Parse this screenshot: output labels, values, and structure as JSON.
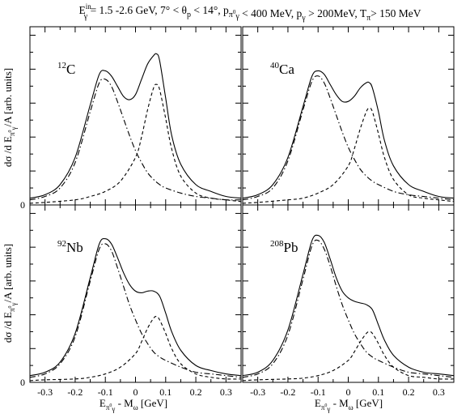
{
  "figure": {
    "title_parts": {
      "e": "E",
      "e_sup": "in",
      "e_sub": "γ",
      "range": " = 1.5 -2.6 GeV, 7° < θ",
      "theta_sub": "p",
      "theta_range": " < 14°, p",
      "p1_sub": "π",
      "p1_sub_sup": "0",
      "p1_sub2": "γ",
      "p1_range": " < 400 MeV, p",
      "p2_sub": "γ",
      "p2_range": " > 200MeV, T",
      "t_sub": "π",
      "t_range": "> 150 MeV"
    },
    "ylabel_parts": {
      "main": "dσ /d E",
      "sub": "π",
      "sub_sup": "0",
      "sub2": "γ",
      "tail": "/A [arb. units]"
    },
    "xlabel_parts": {
      "main": "E",
      "sub": "π",
      "sub_sup": "0",
      "sub2": "γ",
      "tail": " - M",
      "sub_omega": "ω",
      "unit": " [GeV]"
    },
    "y_zero_label": "0",
    "x_tick_labels": [
      "-0.3",
      "-0.2",
      "-0.1",
      "0",
      "0.1",
      "0.2",
      "0.3"
    ]
  },
  "chart_data": [
    {
      "type": "line",
      "panel_label_mass": "12",
      "panel_label_element": "C",
      "xlim": [
        -0.35,
        0.35
      ],
      "ylim": [
        0,
        1.05
      ],
      "series": [
        {
          "style": "solid",
          "x": [
            -0.35,
            -0.3,
            -0.25,
            -0.2,
            -0.15,
            -0.12,
            -0.1,
            -0.08,
            -0.06,
            -0.04,
            -0.02,
            0.0,
            0.02,
            0.04,
            0.06,
            0.07,
            0.08,
            0.1,
            0.12,
            0.15,
            0.2,
            0.25,
            0.3,
            0.35
          ],
          "y": [
            0.04,
            0.06,
            0.12,
            0.28,
            0.59,
            0.77,
            0.79,
            0.76,
            0.7,
            0.64,
            0.62,
            0.65,
            0.74,
            0.83,
            0.88,
            0.89,
            0.85,
            0.63,
            0.41,
            0.24,
            0.12,
            0.08,
            0.05,
            0.04
          ]
        },
        {
          "style": "dashdot",
          "x": [
            -0.35,
            -0.3,
            -0.25,
            -0.2,
            -0.15,
            -0.12,
            -0.1,
            -0.08,
            -0.06,
            -0.04,
            -0.02,
            0.0,
            0.02,
            0.04,
            0.06,
            0.08,
            0.1,
            0.15,
            0.2,
            0.25,
            0.3,
            0.35
          ],
          "y": [
            0.03,
            0.05,
            0.1,
            0.25,
            0.55,
            0.72,
            0.74,
            0.7,
            0.61,
            0.51,
            0.41,
            0.32,
            0.25,
            0.19,
            0.15,
            0.12,
            0.1,
            0.07,
            0.05,
            0.04,
            0.03,
            0.03
          ]
        },
        {
          "style": "dashed",
          "x": [
            -0.35,
            -0.3,
            -0.2,
            -0.15,
            -0.1,
            -0.05,
            0.0,
            0.02,
            0.04,
            0.06,
            0.07,
            0.08,
            0.1,
            0.12,
            0.15,
            0.2,
            0.25,
            0.3,
            0.35
          ],
          "y": [
            0.01,
            0.015,
            0.03,
            0.05,
            0.08,
            0.14,
            0.28,
            0.4,
            0.56,
            0.69,
            0.71,
            0.68,
            0.51,
            0.33,
            0.17,
            0.07,
            0.04,
            0.03,
            0.02
          ]
        }
      ]
    },
    {
      "type": "line",
      "panel_label_mass": "40",
      "panel_label_element": "Ca",
      "xlim": [
        -0.35,
        0.35
      ],
      "ylim": [
        0,
        1.05
      ],
      "series": [
        {
          "style": "solid",
          "x": [
            -0.35,
            -0.3,
            -0.25,
            -0.2,
            -0.15,
            -0.12,
            -0.1,
            -0.08,
            -0.06,
            -0.04,
            -0.02,
            0.0,
            0.02,
            0.04,
            0.06,
            0.07,
            0.08,
            0.1,
            0.12,
            0.15,
            0.2,
            0.25,
            0.3,
            0.35
          ],
          "y": [
            0.04,
            0.06,
            0.12,
            0.28,
            0.58,
            0.76,
            0.79,
            0.77,
            0.71,
            0.65,
            0.61,
            0.61,
            0.64,
            0.69,
            0.72,
            0.72,
            0.69,
            0.55,
            0.38,
            0.23,
            0.12,
            0.08,
            0.05,
            0.04
          ]
        },
        {
          "style": "dashdot",
          "x": [
            -0.35,
            -0.3,
            -0.25,
            -0.2,
            -0.15,
            -0.12,
            -0.1,
            -0.08,
            -0.06,
            -0.04,
            -0.02,
            0.0,
            0.02,
            0.04,
            0.06,
            0.08,
            0.1,
            0.15,
            0.2,
            0.25,
            0.3,
            0.35
          ],
          "y": [
            0.03,
            0.05,
            0.1,
            0.26,
            0.56,
            0.73,
            0.76,
            0.72,
            0.63,
            0.53,
            0.43,
            0.34,
            0.27,
            0.21,
            0.17,
            0.14,
            0.12,
            0.08,
            0.06,
            0.05,
            0.04,
            0.03
          ]
        },
        {
          "style": "dashed",
          "x": [
            -0.35,
            -0.3,
            -0.2,
            -0.15,
            -0.1,
            -0.05,
            0.0,
            0.02,
            0.04,
            0.06,
            0.07,
            0.08,
            0.1,
            0.12,
            0.15,
            0.2,
            0.25,
            0.3,
            0.35
          ],
          "y": [
            0.01,
            0.015,
            0.03,
            0.04,
            0.07,
            0.12,
            0.23,
            0.33,
            0.45,
            0.55,
            0.57,
            0.55,
            0.42,
            0.28,
            0.15,
            0.06,
            0.04,
            0.03,
            0.02
          ]
        }
      ]
    },
    {
      "type": "line",
      "panel_label_mass": "92",
      "panel_label_element": "Nb",
      "xlim": [
        -0.35,
        0.35
      ],
      "ylim": [
        0,
        1.05
      ],
      "series": [
        {
          "style": "solid",
          "x": [
            -0.35,
            -0.3,
            -0.25,
            -0.2,
            -0.15,
            -0.12,
            -0.1,
            -0.08,
            -0.06,
            -0.04,
            -0.02,
            0.0,
            0.02,
            0.04,
            0.06,
            0.08,
            0.1,
            0.12,
            0.15,
            0.2,
            0.25,
            0.3,
            0.35
          ],
          "y": [
            0.04,
            0.06,
            0.12,
            0.29,
            0.62,
            0.82,
            0.85,
            0.82,
            0.74,
            0.65,
            0.58,
            0.54,
            0.53,
            0.54,
            0.54,
            0.51,
            0.41,
            0.3,
            0.19,
            0.1,
            0.07,
            0.05,
            0.04
          ]
        },
        {
          "style": "dashdot",
          "x": [
            -0.35,
            -0.3,
            -0.25,
            -0.2,
            -0.15,
            -0.12,
            -0.1,
            -0.08,
            -0.06,
            -0.04,
            -0.02,
            0.0,
            0.02,
            0.04,
            0.06,
            0.08,
            0.1,
            0.15,
            0.2,
            0.25,
            0.3,
            0.35
          ],
          "y": [
            0.03,
            0.05,
            0.11,
            0.27,
            0.6,
            0.79,
            0.82,
            0.78,
            0.68,
            0.57,
            0.46,
            0.37,
            0.29,
            0.23,
            0.18,
            0.15,
            0.13,
            0.09,
            0.06,
            0.05,
            0.04,
            0.03
          ]
        },
        {
          "style": "dashed",
          "x": [
            -0.35,
            -0.3,
            -0.2,
            -0.15,
            -0.1,
            -0.05,
            0.0,
            0.02,
            0.04,
            0.06,
            0.07,
            0.08,
            0.1,
            0.12,
            0.15,
            0.2,
            0.25,
            0.3,
            0.35
          ],
          "y": [
            0.01,
            0.015,
            0.02,
            0.03,
            0.05,
            0.09,
            0.17,
            0.24,
            0.32,
            0.38,
            0.39,
            0.37,
            0.29,
            0.2,
            0.11,
            0.05,
            0.03,
            0.02,
            0.02
          ]
        }
      ]
    },
    {
      "type": "line",
      "panel_label_mass": "208",
      "panel_label_element": "Pb",
      "xlim": [
        -0.35,
        0.35
      ],
      "ylim": [
        0,
        1.05
      ],
      "series": [
        {
          "style": "solid",
          "x": [
            -0.35,
            -0.3,
            -0.25,
            -0.2,
            -0.15,
            -0.12,
            -0.1,
            -0.08,
            -0.06,
            -0.04,
            -0.02,
            0.0,
            0.02,
            0.04,
            0.06,
            0.08,
            0.1,
            0.12,
            0.15,
            0.2,
            0.25,
            0.3,
            0.35
          ],
          "y": [
            0.04,
            0.06,
            0.13,
            0.31,
            0.64,
            0.84,
            0.87,
            0.83,
            0.73,
            0.62,
            0.54,
            0.5,
            0.48,
            0.47,
            0.46,
            0.43,
            0.34,
            0.25,
            0.16,
            0.09,
            0.06,
            0.05,
            0.04
          ]
        },
        {
          "style": "dashdot",
          "x": [
            -0.35,
            -0.3,
            -0.25,
            -0.2,
            -0.15,
            -0.12,
            -0.1,
            -0.08,
            -0.06,
            -0.04,
            -0.02,
            0.0,
            0.02,
            0.04,
            0.06,
            0.08,
            0.1,
            0.15,
            0.2,
            0.25,
            0.3,
            0.35
          ],
          "y": [
            0.03,
            0.05,
            0.11,
            0.28,
            0.61,
            0.81,
            0.84,
            0.79,
            0.69,
            0.57,
            0.46,
            0.37,
            0.29,
            0.23,
            0.18,
            0.15,
            0.13,
            0.09,
            0.06,
            0.05,
            0.04,
            0.03
          ]
        },
        {
          "style": "dashed",
          "x": [
            -0.35,
            -0.3,
            -0.2,
            -0.15,
            -0.1,
            -0.05,
            0.0,
            0.02,
            0.04,
            0.06,
            0.07,
            0.08,
            0.1,
            0.12,
            0.15,
            0.2,
            0.25,
            0.3,
            0.35
          ],
          "y": [
            0.01,
            0.015,
            0.02,
            0.025,
            0.04,
            0.07,
            0.13,
            0.18,
            0.24,
            0.29,
            0.3,
            0.29,
            0.23,
            0.16,
            0.09,
            0.04,
            0.03,
            0.02,
            0.02
          ]
        }
      ]
    }
  ]
}
